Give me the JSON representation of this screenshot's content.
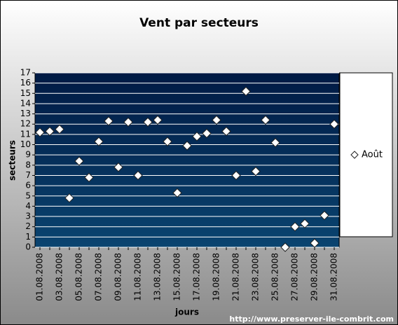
{
  "chart_data": {
    "type": "scatter",
    "title": "Vent par secteurs",
    "x_label": "jours",
    "y_label": "secteurs",
    "categories": [
      "01.08.2008",
      null,
      "03.08.2008",
      null,
      "05.08.2008",
      null,
      "07.08.2008",
      null,
      "09.08.2008",
      null,
      "11.08.2008",
      null,
      "13.08.2008",
      null,
      "15.08.2008",
      null,
      "17.08.2008",
      null,
      "19.08.2008",
      null,
      "21.08.2008",
      null,
      "23.08.2008",
      null,
      "25.08.2008",
      null,
      "27.08.2008",
      null,
      "29.08.2008",
      null,
      "31.08.2008"
    ],
    "series": [
      {
        "name": "Août",
        "color": "#ffffff",
        "values": [
          11.2,
          11.3,
          11.5,
          4.8,
          8.4,
          6.8,
          10.3,
          12.3,
          7.8,
          12.2,
          7.0,
          12.2,
          12.4,
          10.3,
          5.3,
          9.9,
          10.8,
          11.1,
          12.4,
          11.3,
          7.0,
          15.2,
          7.4,
          12.4,
          10.2,
          0,
          2.0,
          2.3,
          0.4,
          3.1,
          12.0
        ]
      }
    ],
    "ylim": [
      0,
      17
    ],
    "yticks": [
      0,
      1,
      2,
      3,
      4,
      5,
      6,
      7,
      8,
      9,
      10,
      11,
      12,
      13,
      14,
      15,
      16,
      17
    ],
    "grid": true,
    "legend": "right",
    "marker": "diamond"
  },
  "footer": "http://www.preserver-ile-combrit.com"
}
